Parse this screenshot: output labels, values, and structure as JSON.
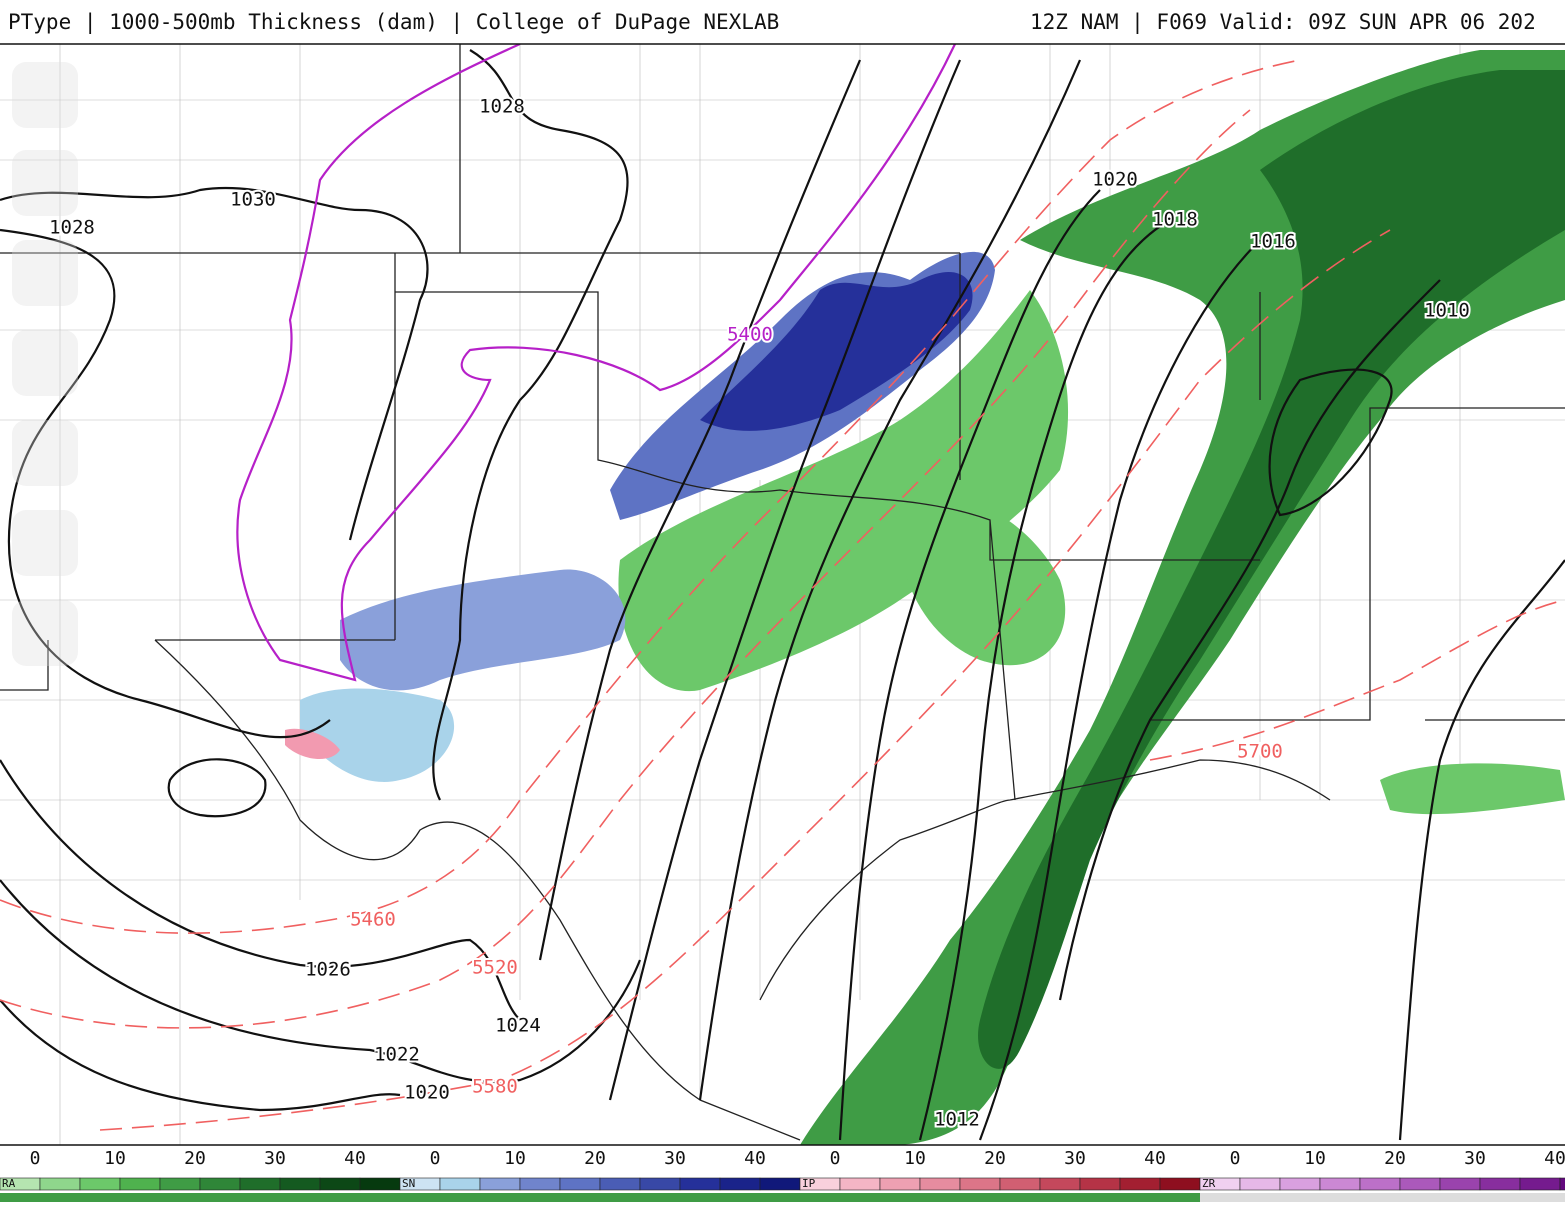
{
  "header": {
    "left": "PType | 1000-500mb Thickness (dam) | College of DuPage NEXLAB",
    "right": "12Z NAM | F069 Valid: 09Z SUN APR 06 202"
  },
  "pressure_labels": [
    "1028",
    "1030",
    "1028",
    "1020",
    "1018",
    "1016",
    "1010",
    "1026",
    "1024",
    "1022",
    "1020",
    "1012"
  ],
  "thickness_labels": [
    "5400",
    "5460",
    "5520",
    "5580",
    "5700"
  ],
  "legend": [
    {
      "name": "RA",
      "ticks": [
        "0",
        "10",
        "20",
        "30",
        "40"
      ]
    },
    {
      "name": "SN",
      "ticks": [
        "0",
        "10",
        "20",
        "30",
        "40"
      ]
    },
    {
      "name": "IP",
      "ticks": [
        "0",
        "10",
        "20",
        "30",
        "40"
      ]
    },
    {
      "name": "ZR",
      "ticks": [
        "0",
        "10",
        "20",
        "30",
        "40"
      ]
    }
  ]
}
